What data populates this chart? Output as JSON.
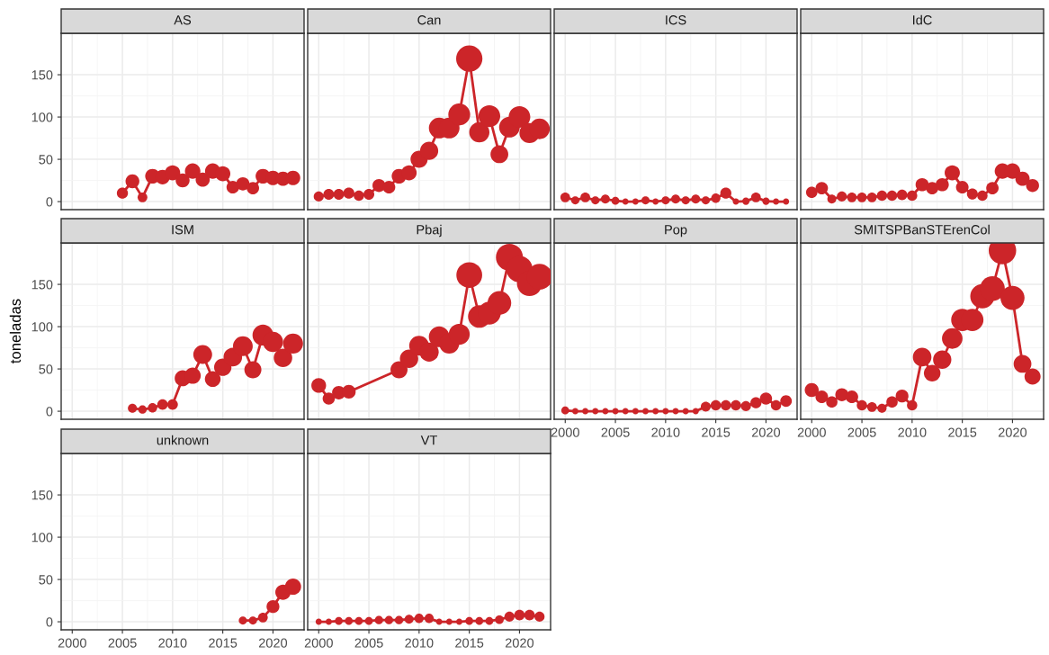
{
  "chart_data": [
    {
      "type": "line",
      "title": "AS",
      "x": [
        2005,
        2006,
        2007,
        2008,
        2009,
        2010,
        2011,
        2012,
        2013,
        2014,
        2015,
        2016,
        2017,
        2018,
        2019,
        2020,
        2021,
        2022
      ],
      "values": [
        10,
        24,
        5,
        30,
        29,
        34,
        25,
        36,
        26,
        36,
        33,
        17,
        21,
        16,
        30,
        28,
        27,
        28
      ],
      "color": "#cc2529",
      "xlim": [
        1998.9,
        2023.1
      ],
      "ylim": [
        -9.5,
        199
      ],
      "xticks": [
        2000,
        2005,
        2010,
        2015,
        2020
      ],
      "yticks": [
        0,
        50,
        100,
        150
      ],
      "grid": true,
      "marker": "circle",
      "tick_labels": "y"
    },
    {
      "type": "line",
      "title": "Can",
      "x": [
        2000,
        2001,
        2002,
        2003,
        2004,
        2005,
        2006,
        2007,
        2008,
        2009,
        2010,
        2011,
        2012,
        2013,
        2014,
        2015,
        2016,
        2017,
        2018,
        2019,
        2020,
        2021,
        2022
      ],
      "values": [
        6,
        8.5,
        8.5,
        10,
        7,
        8.5,
        19,
        17,
        30,
        34,
        50,
        60,
        87,
        87,
        103,
        169,
        82,
        101,
        56,
        88,
        100,
        81,
        86
      ],
      "color": "#cc2529",
      "xlim": [
        1998.9,
        2023.1
      ],
      "ylim": [
        -9.5,
        199
      ],
      "xticks": [
        2000,
        2005,
        2010,
        2015,
        2020
      ],
      "yticks": [
        0,
        50,
        100,
        150
      ],
      "grid": true,
      "marker": "circle",
      "tick_labels": false
    },
    {
      "type": "line",
      "title": "ICS",
      "x": [
        2000,
        2001,
        2002,
        2003,
        2004,
        2005,
        2006,
        2007,
        2008,
        2009,
        2010,
        2011,
        2012,
        2013,
        2014,
        2015,
        2016,
        2017,
        2018,
        2019,
        2020,
        2021,
        2022
      ],
      "values": [
        5,
        1.5,
        5,
        1.5,
        3,
        1,
        0,
        0,
        1.5,
        0,
        1.5,
        3,
        1.5,
        3,
        1.5,
        4,
        10,
        0,
        0.5,
        5,
        0.5,
        0,
        0
      ],
      "color": "#cc2529",
      "xlim": [
        1998.9,
        2023.1
      ],
      "ylim": [
        -9.5,
        199
      ],
      "xticks": [
        2000,
        2005,
        2010,
        2015,
        2020
      ],
      "yticks": [
        0,
        50,
        100,
        150
      ],
      "grid": true,
      "marker": "circle",
      "tick_labels": false
    },
    {
      "type": "line",
      "title": "IdC",
      "x": [
        2000,
        2001,
        2002,
        2003,
        2004,
        2005,
        2006,
        2007,
        2008,
        2009,
        2010,
        2011,
        2012,
        2013,
        2014,
        2015,
        2016,
        2017,
        2018,
        2019,
        2020,
        2021,
        2022
      ],
      "values": [
        11,
        16,
        3,
        6,
        5,
        5,
        5,
        7,
        7,
        8,
        7,
        20,
        16,
        20,
        34,
        17,
        9,
        7,
        16,
        36,
        36,
        27,
        19
      ],
      "color": "#cc2529",
      "xlim": [
        1998.9,
        2023.1
      ],
      "ylim": [
        -9.5,
        199
      ],
      "xticks": [
        2000,
        2005,
        2010,
        2015,
        2020
      ],
      "yticks": [
        0,
        50,
        100,
        150
      ],
      "grid": true,
      "marker": "circle",
      "tick_labels": false
    },
    {
      "type": "line",
      "title": "ISM",
      "ylabel": "toneladas",
      "x": [
        2006,
        2007,
        2008,
        2009,
        2010,
        2011,
        2012,
        2013,
        2014,
        2015,
        2016,
        2017,
        2018,
        2019,
        2020,
        2021,
        2022
      ],
      "values": [
        3.5,
        2,
        4,
        8,
        8,
        39,
        42,
        67,
        38,
        52,
        64,
        77,
        49,
        90,
        82,
        63,
        80
      ],
      "color": "#cc2529",
      "xlim": [
        1998.9,
        2023.1
      ],
      "ylim": [
        -9.5,
        199
      ],
      "xticks": [
        2000,
        2005,
        2010,
        2015,
        2020
      ],
      "yticks": [
        0,
        50,
        100,
        150
      ],
      "grid": true,
      "marker": "circle",
      "tick_labels": "y"
    },
    {
      "type": "line",
      "title": "Pbaj",
      "x": [
        2000,
        2001,
        2002,
        2003,
        2008,
        2009,
        2010,
        2011,
        2012,
        2013,
        2014,
        2015,
        2016,
        2017,
        2018,
        2019,
        2020,
        2021,
        2022
      ],
      "values": [
        30.5,
        15,
        22,
        23,
        49,
        62,
        77.5,
        70,
        88,
        80,
        91,
        161,
        112,
        116,
        128,
        182,
        168,
        151,
        159
      ],
      "color": "#cc2529",
      "xlim": [
        1998.9,
        2023.1
      ],
      "ylim": [
        -9.5,
        199
      ],
      "xticks": [
        2000,
        2005,
        2010,
        2015,
        2020
      ],
      "yticks": [
        0,
        50,
        100,
        150
      ],
      "grid": true,
      "marker": "circle",
      "tick_labels": false
    },
    {
      "type": "line",
      "title": "Pop",
      "x": [
        2000,
        2001,
        2002,
        2003,
        2004,
        2005,
        2006,
        2007,
        2008,
        2009,
        2010,
        2011,
        2012,
        2013,
        2014,
        2015,
        2016,
        2017,
        2018,
        2019,
        2020,
        2021,
        2022
      ],
      "values": [
        1,
        0,
        0,
        0,
        0,
        0,
        0,
        0,
        0,
        0,
        0,
        0,
        0,
        0,
        5.5,
        7,
        7,
        7,
        6,
        10,
        15,
        7,
        12
      ],
      "color": "#cc2529",
      "xlim": [
        1998.9,
        2023.1
      ],
      "ylim": [
        -9.5,
        199
      ],
      "xticks": [
        2000,
        2005,
        2010,
        2015,
        2020
      ],
      "yticks": [
        0,
        50,
        100,
        150
      ],
      "grid": true,
      "marker": "circle",
      "tick_labels": "x"
    },
    {
      "type": "line",
      "title": "SMITSPBanSTErenCol",
      "x": [
        2000,
        2001,
        2002,
        2003,
        2004,
        2005,
        2006,
        2007,
        2008,
        2009,
        2010,
        2011,
        2012,
        2013,
        2014,
        2015,
        2016,
        2017,
        2018,
        2019,
        2020,
        2021,
        2022
      ],
      "values": [
        25,
        17,
        11,
        19.5,
        17,
        7,
        5,
        3.5,
        11,
        18,
        7,
        64,
        45,
        61,
        86,
        108,
        108,
        136,
        145,
        190,
        134,
        56,
        41
      ],
      "color": "#cc2529",
      "xlim": [
        1998.9,
        2023.1
      ],
      "ylim": [
        -9.5,
        199
      ],
      "xticks": [
        2000,
        2005,
        2010,
        2015,
        2020
      ],
      "yticks": [
        0,
        50,
        100,
        150
      ],
      "grid": true,
      "marker": "circle",
      "tick_labels": "x"
    },
    {
      "type": "line",
      "title": "unknown",
      "x": [
        2017,
        2018,
        2019,
        2020,
        2021,
        2022
      ],
      "values": [
        1.5,
        1.5,
        5,
        18,
        35,
        41.5
      ],
      "color": "#cc2529",
      "xlim": [
        1998.9,
        2023.1
      ],
      "ylim": [
        -9.5,
        199
      ],
      "xticks": [
        2000,
        2005,
        2010,
        2015,
        2020
      ],
      "yticks": [
        0,
        50,
        100,
        150
      ],
      "grid": true,
      "marker": "circle"
    },
    {
      "type": "line",
      "title": "VT",
      "x": [
        2000,
        2001,
        2002,
        2003,
        2004,
        2005,
        2006,
        2007,
        2008,
        2009,
        2010,
        2011,
        2012,
        2013,
        2014,
        2015,
        2016,
        2017,
        2018,
        2019,
        2020,
        2021,
        2022
      ],
      "values": [
        0,
        0,
        1,
        1,
        1,
        1,
        2,
        2,
        2,
        3,
        4,
        4,
        0,
        0,
        0,
        1,
        1,
        1,
        2.5,
        6,
        8,
        8,
        6
      ],
      "color": "#cc2529",
      "xlim": [
        1998.9,
        2023.1
      ],
      "ylim": [
        -9.5,
        199
      ],
      "xticks": [
        2000,
        2005,
        2010,
        2015,
        2020
      ],
      "yticks": [
        0,
        50,
        100,
        150
      ],
      "grid": true,
      "marker": "circle",
      "tick_labels": "x"
    }
  ]
}
